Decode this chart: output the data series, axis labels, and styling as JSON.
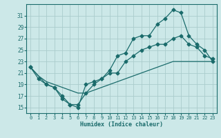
{
  "xlabel": "Humidex (Indice chaleur)",
  "background_color": "#cce8e8",
  "grid_color": "#aacccc",
  "line_color": "#1a6b6b",
  "xlim": [
    -0.5,
    23.5
  ],
  "ylim": [
    14,
    33
  ],
  "xticks": [
    0,
    1,
    2,
    3,
    4,
    5,
    6,
    7,
    8,
    9,
    10,
    11,
    12,
    13,
    14,
    15,
    16,
    17,
    18,
    19,
    20,
    21,
    22,
    23
  ],
  "yticks": [
    15,
    17,
    19,
    21,
    23,
    25,
    27,
    29,
    31
  ],
  "line_straight_x": [
    0,
    1,
    2,
    3,
    4,
    5,
    6,
    7,
    8,
    9,
    10,
    11,
    12,
    13,
    14,
    15,
    16,
    17,
    18,
    19,
    20,
    21,
    22,
    23
  ],
  "line_straight_y": [
    22.0,
    20.5,
    19.5,
    19.0,
    18.5,
    18.0,
    17.5,
    17.5,
    18.0,
    18.5,
    19.0,
    19.5,
    20.0,
    20.5,
    21.0,
    21.5,
    22.0,
    22.5,
    23.0,
    23.0,
    23.0,
    23.0,
    23.0,
    23.0
  ],
  "line_upper_x": [
    0,
    2,
    3,
    4,
    5,
    6,
    7,
    8,
    9,
    10,
    11,
    12,
    13,
    14,
    15,
    16,
    17,
    18,
    19,
    20,
    21,
    22,
    23
  ],
  "line_upper_y": [
    22,
    19,
    18.5,
    17,
    15.5,
    15,
    19,
    19.5,
    20,
    21.5,
    24,
    24.5,
    27,
    27.5,
    27.5,
    29.5,
    30.5,
    32,
    31.5,
    27.5,
    26,
    25,
    23
  ],
  "line_lower_x": [
    0,
    1,
    2,
    3,
    4,
    5,
    6,
    7,
    8,
    9,
    10,
    11,
    12,
    13,
    14,
    15,
    16,
    17,
    18,
    19,
    20,
    21,
    22,
    23
  ],
  "line_lower_y": [
    22,
    20,
    19,
    18.5,
    16.5,
    15.5,
    15.5,
    17.5,
    19,
    20,
    21,
    21,
    23,
    24,
    25,
    25.5,
    26,
    26,
    27,
    27.5,
    26,
    25.5,
    24,
    23.5
  ]
}
